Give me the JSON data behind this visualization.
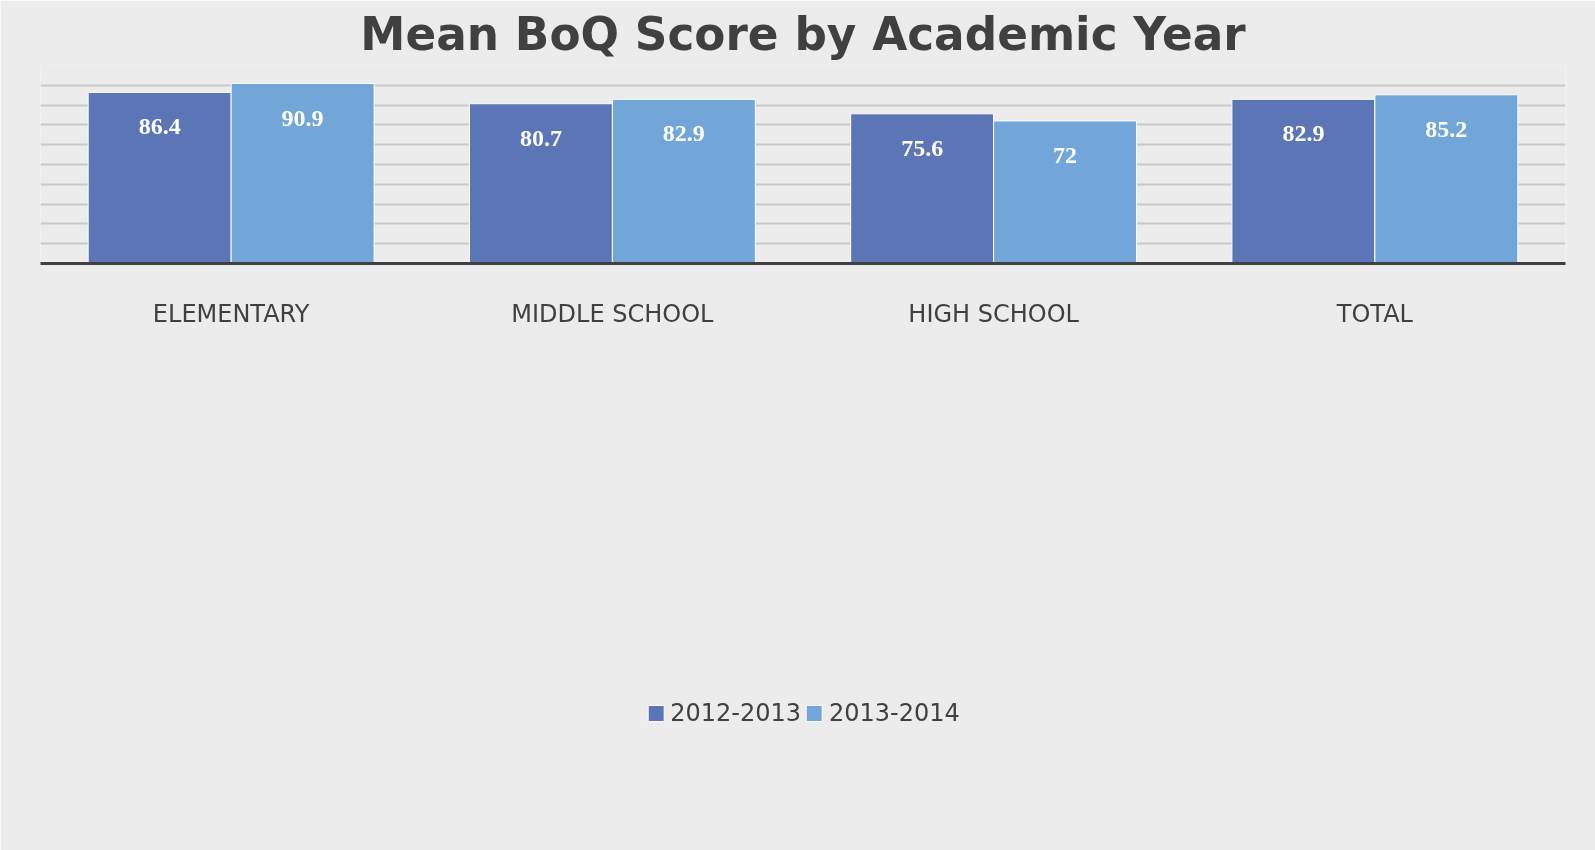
{
  "chart_data": {
    "type": "bar",
    "title": "Mean BoQ Score by Academic Year",
    "categories": [
      "ELEMENTARY",
      "MIDDLE SCHOOL",
      "HIGH SCHOOL",
      "TOTAL"
    ],
    "series": [
      {
        "name": "2012-2013",
        "color": "#5b75b6",
        "values": [
          86.4,
          80.7,
          75.6,
          82.9
        ]
      },
      {
        "name": "2013-2014",
        "color": "#72a6d8",
        "values": [
          90.9,
          82.9,
          72,
          85.2
        ]
      }
    ],
    "ylim": [
      0,
      100
    ],
    "yticks": [
      {
        "value": 0,
        "label": null
      },
      {
        "value": 10,
        "label": null
      },
      {
        "value": 20,
        "label": null
      },
      {
        "value": 30,
        "label": null
      },
      {
        "value": 40,
        "label": null
      },
      {
        "value": 50,
        "label": null
      },
      {
        "value": 60,
        "label": null
      },
      {
        "value": 70,
        "label": null
      },
      {
        "value": 80,
        "label": null
      },
      {
        "value": 90,
        "label": null
      },
      {
        "value": 100,
        "label": null
      }
    ],
    "grid": "y",
    "legend": "bottom",
    "data_labels": true
  }
}
